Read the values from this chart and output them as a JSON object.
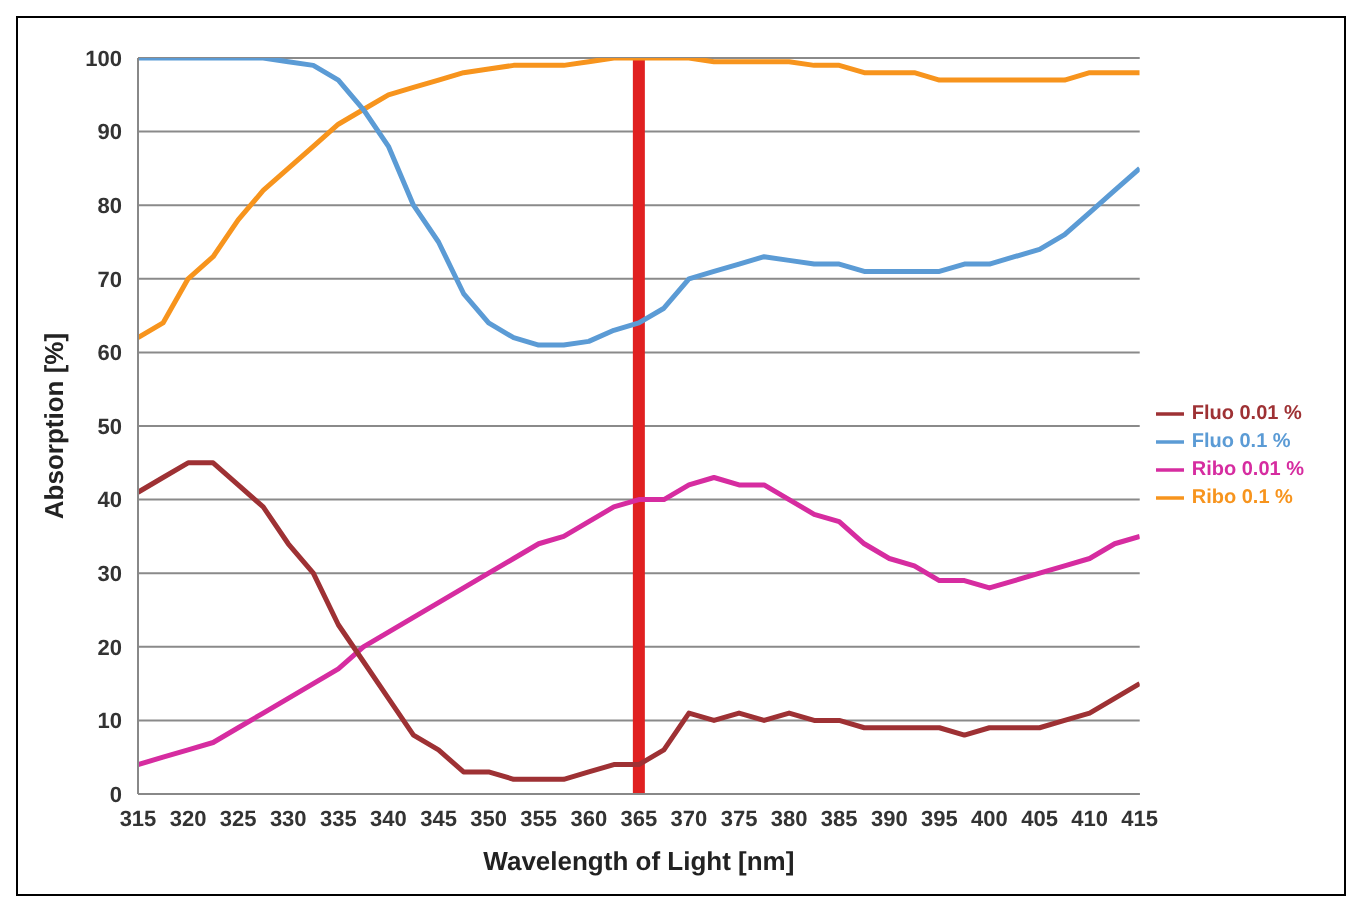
{
  "chart_data": {
    "type": "line",
    "xlabel": "Wavelength of Light [nm]",
    "ylabel": "Absorption [%]",
    "x": [
      315,
      317.5,
      320,
      322.5,
      325,
      327.5,
      330,
      332.5,
      335,
      337.5,
      340,
      342.5,
      345,
      347.5,
      350,
      352.5,
      355,
      357.5,
      360,
      362.5,
      365,
      367.5,
      370,
      372.5,
      375,
      377.5,
      380,
      382.5,
      385,
      387.5,
      390,
      392.5,
      395,
      397.5,
      400,
      402.5,
      405,
      407.5,
      410,
      412.5,
      415
    ],
    "series": [
      {
        "name": "Ribo 0.1 %",
        "color": "#f7941d",
        "values": [
          62,
          64,
          70,
          73,
          78,
          82,
          85,
          88,
          91,
          93,
          95,
          96,
          97,
          98,
          98.5,
          99,
          99,
          99,
          99.5,
          100,
          100,
          100,
          100,
          99.5,
          99.5,
          99.5,
          99.5,
          99,
          99,
          98,
          98,
          98,
          97,
          97,
          97,
          97,
          97,
          97,
          98,
          98,
          98
        ]
      },
      {
        "name": "Ribo 0.01 %",
        "color": "#d62ca0",
        "values": [
          4,
          5,
          6,
          7,
          9,
          11,
          13,
          15,
          17,
          20,
          22,
          24,
          26,
          28,
          30,
          32,
          34,
          35,
          37,
          39,
          40,
          40,
          42,
          43,
          42,
          42,
          40,
          38,
          37,
          34,
          32,
          31,
          29,
          29,
          28,
          29,
          30,
          31,
          32,
          34,
          35
        ]
      },
      {
        "name": "Fluo 0.1 %",
        "color": "#5b9bd5",
        "values": [
          100,
          100,
          100,
          100,
          100,
          100,
          99.5,
          99,
          97,
          93,
          88,
          80,
          75,
          68,
          64,
          62,
          61,
          61,
          61.5,
          63,
          64,
          66,
          70,
          71,
          72,
          73,
          72.5,
          72,
          72,
          71,
          71,
          71,
          71,
          72,
          72,
          73,
          74,
          76,
          79,
          82,
          85
        ]
      },
      {
        "name": "Fluo 0.01 %",
        "color": "#9e3134",
        "values": [
          41,
          43,
          45,
          45,
          42,
          39,
          34,
          30,
          23,
          18,
          13,
          8,
          6,
          3,
          3,
          2,
          2,
          2,
          3,
          4,
          4,
          6,
          11,
          10,
          11,
          10,
          11,
          10,
          10,
          9,
          9,
          9,
          9,
          8,
          9,
          9,
          9,
          10,
          11,
          13,
          15
        ]
      }
    ],
    "xlim": [
      315,
      415
    ],
    "xticks": [
      315,
      320,
      325,
      330,
      335,
      340,
      345,
      350,
      355,
      360,
      365,
      370,
      375,
      380,
      385,
      390,
      395,
      400,
      405,
      410,
      415
    ],
    "ylim": [
      0,
      100
    ],
    "yticks": [
      0,
      10,
      20,
      30,
      40,
      50,
      60,
      70,
      80,
      90,
      100
    ],
    "grid": "y",
    "legend": "right",
    "marker": "none",
    "line_style": "solid",
    "ref_lines": [
      {
        "axis": "x",
        "value": 365,
        "color": "#e02020"
      }
    ]
  }
}
